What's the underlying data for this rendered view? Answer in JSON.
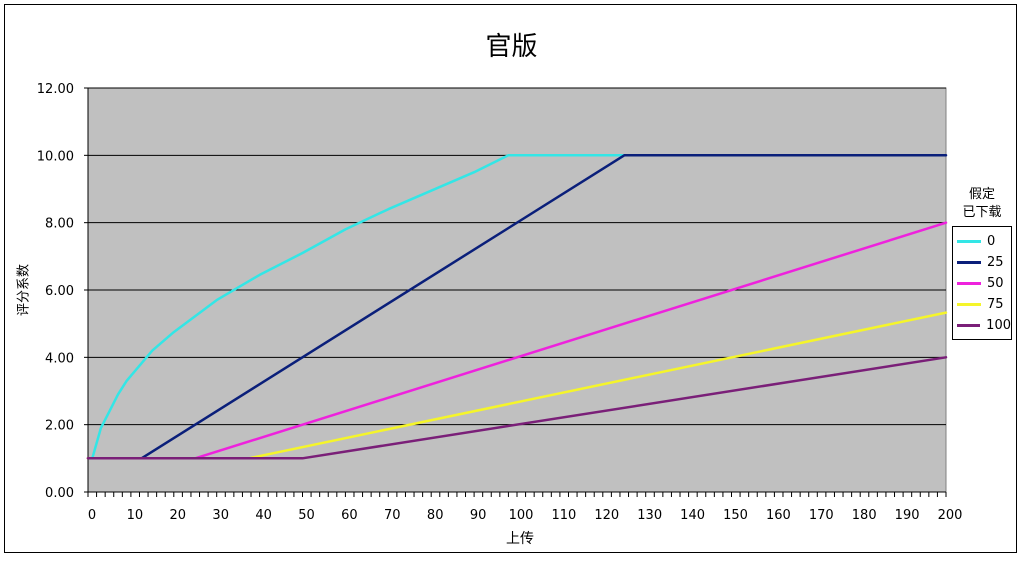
{
  "chart_data": {
    "type": "line",
    "title": "官版",
    "xlabel": "上传",
    "ylabel": "评分系数",
    "xlim": [
      0,
      200
    ],
    "ylim": [
      0,
      12
    ],
    "x_ticks": [
      0,
      10,
      20,
      30,
      40,
      50,
      60,
      70,
      80,
      90,
      100,
      110,
      120,
      130,
      140,
      150,
      160,
      170,
      180,
      190,
      200
    ],
    "y_ticks": [
      "0.00",
      "2.00",
      "4.00",
      "6.00",
      "8.00",
      "10.00",
      "12.00"
    ],
    "grid": true,
    "plot_background": "#c0c0c0",
    "legend_title": [
      "假定",
      "已下载"
    ],
    "legend_position": "right",
    "series": [
      {
        "name": "0",
        "color": "#33e6e6",
        "points": [
          [
            1,
            1
          ],
          [
            3,
            1.9
          ],
          [
            5,
            2.4
          ],
          [
            7,
            2.9
          ],
          [
            9,
            3.3
          ],
          [
            10,
            3.45
          ],
          [
            15,
            4.2
          ],
          [
            20,
            4.75
          ],
          [
            30,
            5.7
          ],
          [
            40,
            6.45
          ],
          [
            50,
            7.1
          ],
          [
            60,
            7.8
          ],
          [
            70,
            8.4
          ],
          [
            80,
            8.95
          ],
          [
            90,
            9.5
          ],
          [
            98,
            10
          ],
          [
            100,
            10
          ],
          [
            125,
            10
          ]
        ]
      },
      {
        "name": "25",
        "color": "#0a1f7a",
        "points": [
          [
            0,
            1
          ],
          [
            12.5,
            1
          ],
          [
            125,
            10
          ],
          [
            200,
            10
          ]
        ]
      },
      {
        "name": "50",
        "color": "#ee22dd",
        "points": [
          [
            0,
            1
          ],
          [
            25,
            1
          ],
          [
            200,
            8
          ]
        ]
      },
      {
        "name": "75",
        "color": "#f5f52a",
        "points": [
          [
            0,
            1
          ],
          [
            37.5,
            1
          ],
          [
            200,
            5.33
          ]
        ]
      },
      {
        "name": "100",
        "color": "#7a1f78",
        "points": [
          [
            0,
            1
          ],
          [
            50,
            1
          ],
          [
            200,
            4
          ]
        ]
      }
    ]
  }
}
